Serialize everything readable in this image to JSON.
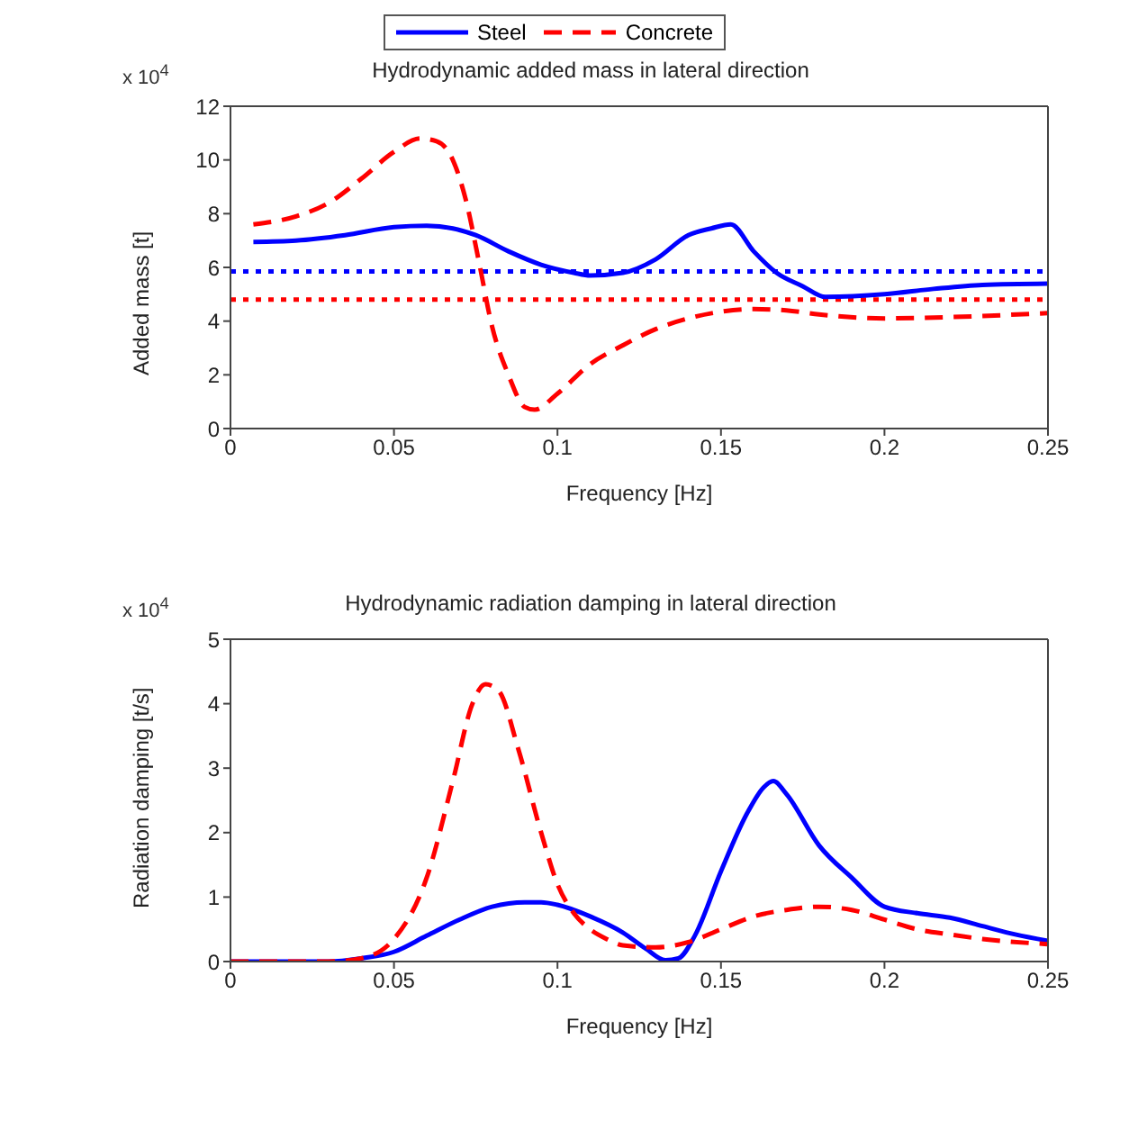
{
  "chart_data": [
    {
      "type": "line",
      "title": "Hydrodynamic added mass in lateral direction",
      "xlabel": "Frequency [Hz]",
      "ylabel": "Added mass [t]",
      "annotations": [
        "x 10$^{4}$"
      ],
      "legend": "top",
      "grid": false,
      "xlim": [
        0,
        0.25
      ],
      "xticks": [
        0,
        0.05,
        0.1,
        0.15,
        0.2,
        0.25
      ],
      "ylim": [
        0,
        12
      ],
      "yticks": [
        0,
        2,
        4,
        6,
        8,
        10,
        12
      ],
      "series": [
        {
          "name": "Steel",
          "color": "#0000ff",
          "line_style": "solid",
          "x": [
            0.007,
            0.02,
            0.035,
            0.05,
            0.06,
            0.068,
            0.075,
            0.085,
            0.095,
            0.105,
            0.11,
            0.12,
            0.13,
            0.14,
            0.147,
            0.153,
            0.16,
            0.167,
            0.175,
            0.182,
            0.2,
            0.215,
            0.23,
            0.25
          ],
          "values": [
            6.95,
            7.0,
            7.2,
            7.5,
            7.55,
            7.45,
            7.2,
            6.6,
            6.1,
            5.8,
            5.7,
            5.8,
            6.3,
            7.2,
            7.45,
            7.6,
            6.6,
            5.8,
            5.3,
            4.9,
            5.0,
            5.2,
            5.35,
            5.4
          ]
        },
        {
          "name": "Concrete",
          "color": "#ff0000",
          "line_style": "dashed",
          "x": [
            0.007,
            0.02,
            0.03,
            0.04,
            0.05,
            0.058,
            0.063,
            0.068,
            0.072,
            0.076,
            0.08,
            0.085,
            0.09,
            0.093,
            0.1,
            0.11,
            0.12,
            0.13,
            0.14,
            0.15,
            0.16,
            0.17,
            0.18,
            0.2,
            0.22,
            0.25
          ],
          "values": [
            7.6,
            7.9,
            8.4,
            9.3,
            10.3,
            10.8,
            10.7,
            10.0,
            8.5,
            6.2,
            3.8,
            2.0,
            0.8,
            0.7,
            1.3,
            2.4,
            3.1,
            3.7,
            4.1,
            4.35,
            4.45,
            4.4,
            4.25,
            4.1,
            4.15,
            4.3
          ]
        }
      ],
      "ref_lines": [
        {
          "axis": "y",
          "value": 5.85,
          "color": "#0000ff",
          "line_style": "dotted"
        },
        {
          "axis": "y",
          "value": 4.8,
          "color": "#ff0000",
          "line_style": "dotted"
        }
      ]
    },
    {
      "type": "line",
      "title": "Hydrodynamic radiation damping in lateral direction",
      "xlabel": "Frequency [Hz]",
      "ylabel": "Radiation damping [t/s]",
      "annotations": [
        "x 10$^{4}$"
      ],
      "grid": false,
      "xlim": [
        0,
        0.25
      ],
      "xticks": [
        0,
        0.05,
        0.1,
        0.15,
        0.2,
        0.25
      ],
      "ylim": [
        0,
        5
      ],
      "yticks": [
        0,
        1,
        2,
        3,
        4,
        5
      ],
      "series": [
        {
          "color": "#0000ff",
          "line_style": "solid",
          "x": [
            0,
            0.03,
            0.04,
            0.05,
            0.06,
            0.07,
            0.08,
            0.09,
            0.095,
            0.1,
            0.11,
            0.12,
            0.127,
            0.133,
            0.137,
            0.142,
            0.15,
            0.158,
            0.163,
            0.166,
            0.17,
            0.18,
            0.19,
            0.2,
            0.21,
            0.22,
            0.23,
            0.24,
            0.25
          ],
          "values": [
            0,
            0,
            0.05,
            0.15,
            0.4,
            0.65,
            0.85,
            0.92,
            0.92,
            0.88,
            0.7,
            0.45,
            0.2,
            0.02,
            0.05,
            0.4,
            1.4,
            2.3,
            2.7,
            2.8,
            2.6,
            1.8,
            1.3,
            0.85,
            0.75,
            0.68,
            0.55,
            0.42,
            0.32
          ]
        },
        {
          "color": "#ff0000",
          "line_style": "dashed",
          "x": [
            0,
            0.03,
            0.04,
            0.05,
            0.06,
            0.068,
            0.074,
            0.078,
            0.082,
            0.088,
            0.095,
            0.1,
            0.105,
            0.11,
            0.115,
            0.12,
            0.13,
            0.14,
            0.15,
            0.16,
            0.17,
            0.18,
            0.19,
            0.2,
            0.21,
            0.22,
            0.23,
            0.25
          ],
          "values": [
            0,
            0,
            0.05,
            0.35,
            1.3,
            2.8,
            4.0,
            4.3,
            4.2,
            3.3,
            2.0,
            1.2,
            0.75,
            0.5,
            0.35,
            0.25,
            0.22,
            0.3,
            0.5,
            0.7,
            0.8,
            0.85,
            0.8,
            0.65,
            0.5,
            0.42,
            0.35,
            0.27
          ]
        }
      ]
    }
  ]
}
